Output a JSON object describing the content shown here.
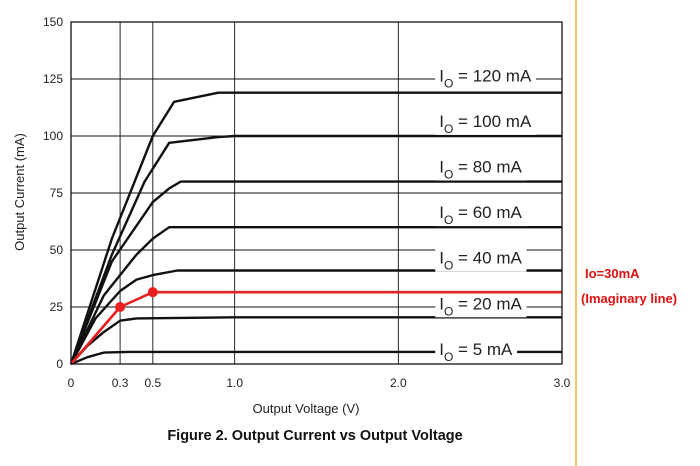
{
  "chart_data": {
    "type": "line",
    "title": "Figure 2. Output Current vs Output Voltage",
    "xlabel": "Output Voltage (V)",
    "ylabel": "Output Current (mA)",
    "xlim": [
      0,
      3.0
    ],
    "ylim": [
      0,
      150
    ],
    "x_ticks": [
      {
        "value": 0,
        "label": "0"
      },
      {
        "value": 0.3,
        "label": "0.3"
      },
      {
        "value": 0.5,
        "label": "0.5"
      },
      {
        "value": 1.0,
        "label": "1.0"
      },
      {
        "value": 2.0,
        "label": "2.0"
      },
      {
        "value": 3.0,
        "label": "3.0"
      }
    ],
    "y_ticks": [
      {
        "value": 0,
        "label": "0"
      },
      {
        "value": 25,
        "label": "25"
      },
      {
        "value": 50,
        "label": "50"
      },
      {
        "value": 75,
        "label": "75"
      },
      {
        "value": 100,
        "label": "100"
      },
      {
        "value": 125,
        "label": "125"
      },
      {
        "value": 150,
        "label": "150"
      }
    ],
    "x_gridlines": [
      0.3,
      0.5,
      1.0,
      2.0
    ],
    "grid": true,
    "series": [
      {
        "label_main": "I",
        "label_sub": "O",
        "label_rest": " = 120 mA",
        "label_at": [
          2.25,
          124
        ],
        "color": "#111111",
        "points": [
          [
            0,
            0
          ],
          [
            0.25,
            55
          ],
          [
            0.5,
            100
          ],
          [
            0.63,
            115
          ],
          [
            0.9,
            119
          ],
          [
            1.4,
            119
          ],
          [
            3.0,
            119
          ]
        ]
      },
      {
        "label_main": "I",
        "label_sub": "O",
        "label_rest": " = 100 mA",
        "label_at": [
          2.25,
          104
        ],
        "color": "#111111",
        "points": [
          [
            0,
            0
          ],
          [
            0.25,
            48
          ],
          [
            0.45,
            80
          ],
          [
            0.6,
            97
          ],
          [
            0.9,
            99.5
          ],
          [
            1.0,
            100
          ],
          [
            3.0,
            100
          ]
        ]
      },
      {
        "label_main": "I",
        "label_sub": "O",
        "label_rest": " = 80 mA",
        "label_at": [
          2.25,
          84
        ],
        "color": "#111111",
        "points": [
          [
            0,
            0
          ],
          [
            0.25,
            45
          ],
          [
            0.5,
            71
          ],
          [
            0.6,
            77
          ],
          [
            0.67,
            80
          ],
          [
            3.0,
            80
          ]
        ]
      },
      {
        "label_main": "I",
        "label_sub": "O",
        "label_rest": " = 60 mA",
        "label_at": [
          2.25,
          64
        ],
        "color": "#111111",
        "points": [
          [
            0,
            0
          ],
          [
            0.2,
            30
          ],
          [
            0.4,
            48
          ],
          [
            0.5,
            55
          ],
          [
            0.6,
            60
          ],
          [
            3.0,
            60
          ]
        ]
      },
      {
        "label_main": "I",
        "label_sub": "O",
        "label_rest": " = 40 mA",
        "label_at": [
          2.25,
          44
        ],
        "color": "#111111",
        "points": [
          [
            0,
            0
          ],
          [
            0.15,
            20
          ],
          [
            0.3,
            32
          ],
          [
            0.4,
            37
          ],
          [
            0.5,
            39
          ],
          [
            0.65,
            41
          ],
          [
            3.0,
            41
          ]
        ]
      },
      {
        "label_main": "I",
        "label_sub": "O",
        "label_rest": " = 20 mA",
        "label_at": [
          2.25,
          24
        ],
        "color": "#111111",
        "points": [
          [
            0,
            0
          ],
          [
            0.1,
            8
          ],
          [
            0.2,
            14
          ],
          [
            0.3,
            19
          ],
          [
            0.4,
            20
          ],
          [
            1.0,
            20.5
          ],
          [
            3.0,
            20.5
          ]
        ]
      },
      {
        "label_main": "I",
        "label_sub": "O",
        "label_rest": " = 5 mA",
        "label_at": [
          2.25,
          4
        ],
        "color": "#111111",
        "points": [
          [
            0,
            0
          ],
          [
            0.1,
            3
          ],
          [
            0.2,
            5
          ],
          [
            0.35,
            5.3
          ],
          [
            3.0,
            5.3
          ]
        ]
      }
    ],
    "highlight": {
      "color": "#e82020",
      "points": [
        [
          0,
          0
        ],
        [
          0.3,
          25
        ],
        [
          0.5,
          31.5
        ],
        [
          3.0,
          31.5
        ]
      ],
      "markers": [
        [
          0.3,
          25
        ],
        [
          0.5,
          31.5
        ]
      ],
      "annotation_line1": "Io=30mA",
      "annotation_line2": "(Imaginary line)"
    }
  }
}
